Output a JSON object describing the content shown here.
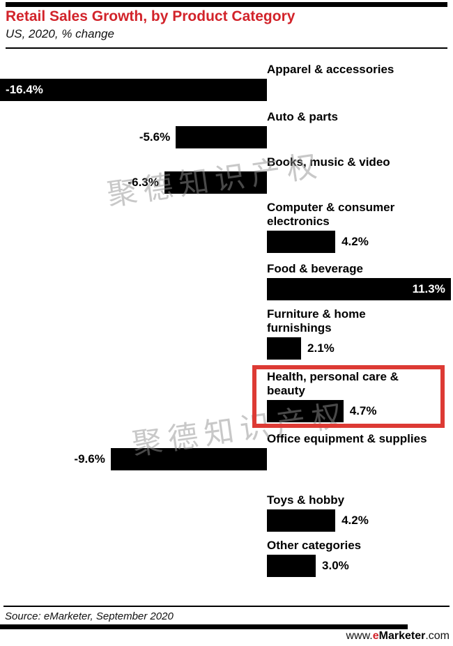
{
  "header": {
    "title": "Retail Sales Growth, by Product Category",
    "subtitle": "US, 2020, % change"
  },
  "chart_data": {
    "type": "bar",
    "orientation": "horizontal",
    "title": "Retail Sales Growth, by Product Category",
    "subtitle": "US, 2020, % change",
    "unit": "% change",
    "xlim": [
      -16.4,
      11.3
    ],
    "axis_zero_centered": true,
    "grid": false,
    "legend": false,
    "categories": [
      "Apparel & accessories",
      "Auto & parts",
      "Books, music & video",
      "Computer & consumer electronics",
      "Food & beverage",
      "Furniture & home furnishings",
      "Health, personal care & beauty",
      "Office equipment & supplies",
      "Toys & hobby",
      "Other categories"
    ],
    "values": [
      -16.4,
      -5.6,
      -6.3,
      4.2,
      11.3,
      2.1,
      4.7,
      -9.6,
      4.2,
      3.0
    ],
    "value_labels": [
      "-16.4%",
      "-5.6%",
      "-6.3%",
      "4.2%",
      "11.3%",
      "2.1%",
      "4.7%",
      "-9.6%",
      "4.2%",
      "3.0%"
    ],
    "bar_color": "#000000",
    "highlighted_category": "Health, personal care & beauty",
    "highlight_box_color": "#dd3a34"
  },
  "watermark": {
    "text": "聚德知识产权"
  },
  "footer": {
    "source": "Source: eMarketer, September 2020",
    "url_prefix": "www.",
    "url_brand_e": "e",
    "url_brand_rest": "Marketer",
    "url_suffix": ".com"
  },
  "colors": {
    "accent_red": "#d2232a",
    "highlight_box": "#dd3a34",
    "bar": "#000000",
    "background": "#ffffff"
  }
}
